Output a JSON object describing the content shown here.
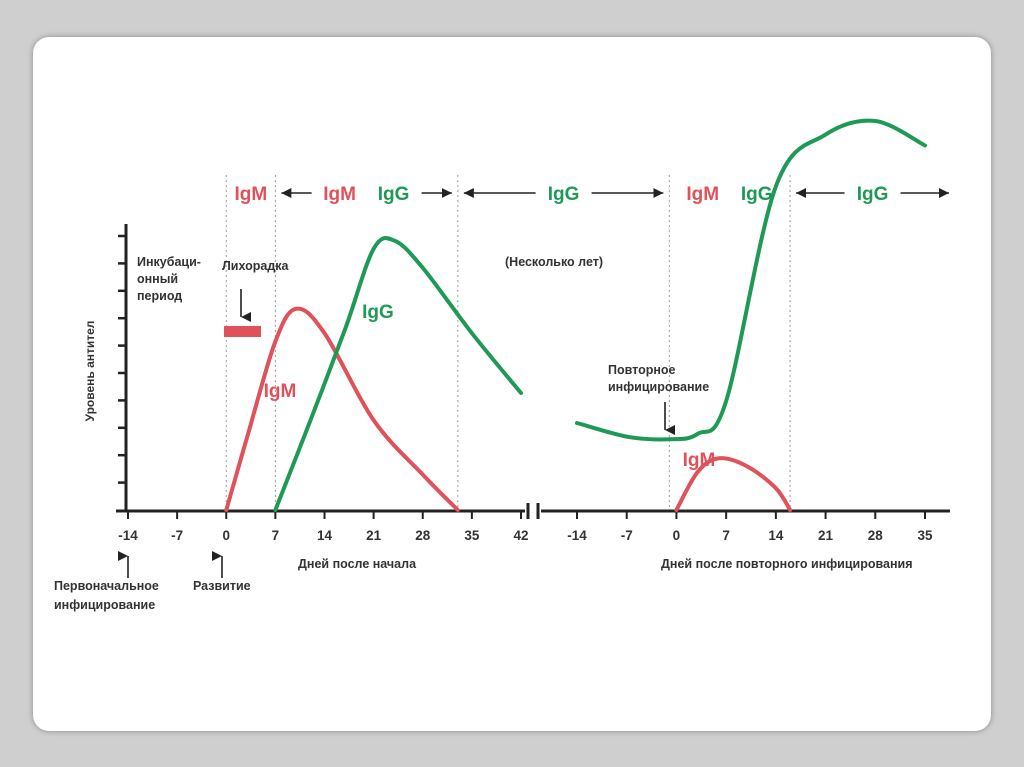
{
  "colors": {
    "igm": "#e0525a",
    "igg": "#1f9a56",
    "axis": "#222222",
    "text": "#333333",
    "divider": "#9a9a9a"
  },
  "chart_data": {
    "type": "line",
    "ylabel": "Уровень антител",
    "xlabel_primary": "Дней после начала",
    "xlabel_secondary": "Дней после повторного инфицирования",
    "axis_break": true,
    "primary_ticks": [
      "-14",
      "-7",
      "0",
      "7",
      "14",
      "21",
      "28",
      "35",
      "42"
    ],
    "secondary_ticks": [
      "-14",
      "-7",
      "0",
      "7",
      "14",
      "21",
      "28",
      "35"
    ],
    "header_segments": [
      {
        "labels": [
          {
            "text": "IgM",
            "class": "igm"
          }
        ],
        "arrows": false
      },
      {
        "labels": [
          {
            "text": "IgM",
            "class": "igm"
          },
          {
            "text": "IgG",
            "class": "igg"
          }
        ],
        "arrows": true
      },
      {
        "labels": [
          {
            "text": "IgG",
            "class": "igg"
          }
        ],
        "arrows": true
      },
      {
        "labels": [
          {
            "text": "IgM",
            "class": "igm"
          },
          {
            "text": "IgG",
            "class": "igg"
          }
        ],
        "arrows": false
      },
      {
        "labels": [
          {
            "text": "IgG",
            "class": "igg"
          }
        ],
        "arrows": true
      }
    ],
    "annotations": {
      "incubation": [
        "Инкубаци-",
        "онный",
        "период"
      ],
      "fever": "Лихорадка",
      "several_years": "(Несколько лет)",
      "reinfection": [
        "Повторное",
        "инфицирование"
      ],
      "initial_infection": [
        "Первоначальное",
        "инфицирование"
      ],
      "onset": "Развитие"
    },
    "series": [
      {
        "name": "IgM",
        "phase": "primary",
        "x": [
          0,
          3,
          7,
          10,
          14,
          21,
          28,
          33
        ],
        "y": [
          0,
          2.7,
          6.2,
          7.4,
          6.5,
          3.3,
          1.3,
          0
        ]
      },
      {
        "name": "IgG",
        "phase": "primary",
        "x": [
          7,
          12,
          17,
          21,
          24,
          28,
          35,
          42
        ],
        "y": [
          0,
          3.3,
          6.7,
          9.6,
          9.9,
          8.9,
          6.5,
          4.3
        ]
      },
      {
        "name": "IgG",
        "phase": "secondary",
        "x": [
          -14,
          -7,
          -1,
          3,
          7,
          14,
          21,
          28,
          35
        ],
        "y": [
          3.2,
          2.7,
          2.6,
          2.8,
          4.0,
          11.9,
          13.8,
          14.3,
          13.4
        ]
      },
      {
        "name": "IgM",
        "phase": "secondary",
        "x": [
          0,
          3,
          6,
          10,
          14,
          16
        ],
        "y": [
          0,
          1.4,
          1.9,
          1.6,
          0.8,
          0
        ]
      }
    ]
  }
}
